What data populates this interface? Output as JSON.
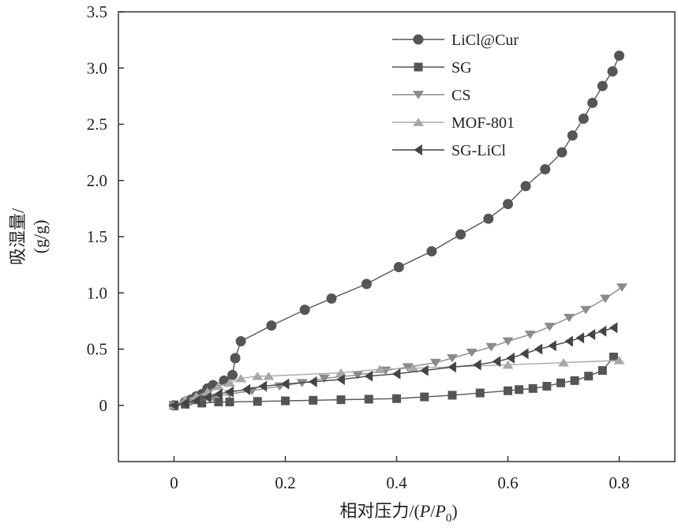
{
  "chart_data": {
    "type": "line",
    "xlabel_parts": [
      "相对压力/(",
      "P",
      "/",
      "P",
      "0",
      ")"
    ],
    "ylabel_lines": [
      "吸湿量/",
      "(g/g)"
    ],
    "xlim": [
      -0.1,
      0.9
    ],
    "ylim": [
      -0.5,
      3.5
    ],
    "xticks": [
      {
        "value": 0,
        "label": "0"
      },
      {
        "value": 0.2,
        "label": "0.2"
      },
      {
        "value": 0.4,
        "label": "0.4"
      },
      {
        "value": 0.6,
        "label": "0.6"
      },
      {
        "value": 0.8,
        "label": "0.8"
      }
    ],
    "yticks": [
      {
        "value": 0,
        "label": "0"
      },
      {
        "value": 0.5,
        "label": "0.5"
      },
      {
        "value": 1.0,
        "label": "1.0"
      },
      {
        "value": 1.5,
        "label": "1.5"
      },
      {
        "value": 2.0,
        "label": "2.0"
      },
      {
        "value": 2.5,
        "label": "2.5"
      },
      {
        "value": 3.0,
        "label": "3.0"
      },
      {
        "value": 3.5,
        "label": "3.5"
      }
    ],
    "grid": false,
    "legend_position": "top-right",
    "series": [
      {
        "name": "LiCl@Cur",
        "marker": "circle",
        "color": "#555555",
        "x": [
          0,
          0.02,
          0.03,
          0.04,
          0.05,
          0.06,
          0.07,
          0.09,
          0.105,
          0.11,
          0.12,
          0.175,
          0.235,
          0.283,
          0.346,
          0.404,
          0.463,
          0.515,
          0.565,
          0.6,
          0.632,
          0.667,
          0.697,
          0.716,
          0.736,
          0.752,
          0.77,
          0.788,
          0.8
        ],
        "y": [
          0,
          0.03,
          0.05,
          0.08,
          0.1,
          0.15,
          0.18,
          0.22,
          0.27,
          0.42,
          0.57,
          0.71,
          0.85,
          0.95,
          1.08,
          1.23,
          1.37,
          1.52,
          1.66,
          1.79,
          1.95,
          2.1,
          2.25,
          2.4,
          2.55,
          2.69,
          2.84,
          2.97,
          3.11
        ]
      },
      {
        "name": "SG",
        "marker": "square",
        "color": "#555555",
        "x": [
          0,
          0.02,
          0.05,
          0.08,
          0.1,
          0.15,
          0.2,
          0.25,
          0.3,
          0.35,
          0.4,
          0.45,
          0.5,
          0.55,
          0.6,
          0.62,
          0.645,
          0.67,
          0.695,
          0.72,
          0.745,
          0.77,
          0.79
        ],
        "y": [
          0,
          0.01,
          0.02,
          0.03,
          0.03,
          0.035,
          0.04,
          0.045,
          0.05,
          0.055,
          0.06,
          0.075,
          0.09,
          0.11,
          0.13,
          0.14,
          0.15,
          0.17,
          0.2,
          0.22,
          0.26,
          0.31,
          0.43
        ]
      },
      {
        "name": "CS",
        "marker": "triangle-down",
        "color": "#8a8a8a",
        "x": [
          0,
          0.03,
          0.07,
          0.1,
          0.14,
          0.19,
          0.23,
          0.27,
          0.33,
          0.38,
          0.42,
          0.47,
          0.5,
          0.535,
          0.57,
          0.6,
          0.64,
          0.675,
          0.71,
          0.74,
          0.775,
          0.805
        ],
        "y": [
          0,
          0.03,
          0.07,
          0.1,
          0.13,
          0.17,
          0.2,
          0.24,
          0.27,
          0.31,
          0.34,
          0.38,
          0.42,
          0.47,
          0.52,
          0.57,
          0.63,
          0.7,
          0.78,
          0.85,
          0.95,
          1.05
        ]
      },
      {
        "name": "MOF-801",
        "marker": "triangle-up",
        "color": "#a8a8a8",
        "x": [
          0,
          0.02,
          0.04,
          0.06,
          0.08,
          0.1,
          0.12,
          0.15,
          0.17,
          0.3,
          0.37,
          0.43,
          0.6,
          0.7,
          0.8
        ],
        "y": [
          0,
          0.05,
          0.08,
          0.12,
          0.17,
          0.2,
          0.24,
          0.26,
          0.26,
          0.29,
          0.32,
          0.33,
          0.36,
          0.38,
          0.4
        ]
      },
      {
        "name": "SG-LiCl",
        "marker": "triangle-left",
        "color": "#444444",
        "x": [
          0,
          0.02,
          0.04,
          0.06,
          0.08,
          0.1,
          0.13,
          0.16,
          0.2,
          0.25,
          0.3,
          0.35,
          0.4,
          0.45,
          0.5,
          0.545,
          0.58,
          0.605,
          0.63,
          0.655,
          0.68,
          0.71,
          0.73,
          0.75,
          0.77,
          0.79
        ],
        "y": [
          0,
          0.02,
          0.04,
          0.07,
          0.1,
          0.12,
          0.14,
          0.17,
          0.19,
          0.21,
          0.23,
          0.26,
          0.28,
          0.31,
          0.34,
          0.36,
          0.39,
          0.42,
          0.46,
          0.5,
          0.53,
          0.57,
          0.6,
          0.63,
          0.66,
          0.69
        ]
      }
    ]
  }
}
